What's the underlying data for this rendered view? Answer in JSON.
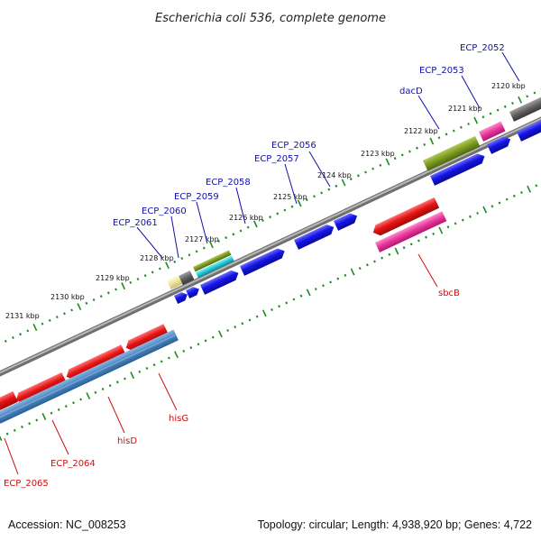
{
  "title": "Escherichia coli 536, complete genome",
  "footer": {
    "accession": "Accession: NC_008253",
    "summary": "Topology: circular; Length: 4,938,920 bp; Genes: 4,722"
  },
  "ruler_labels": [
    "2120 kbp",
    "2121 kbp",
    "2122 kbp",
    "2123 kbp",
    "2124 kbp",
    "2125 kbp",
    "2126 kbp",
    "2127 kbp",
    "2128 kbp",
    "2129 kbp",
    "2130 kbp",
    "2131 kbp"
  ],
  "forward_gene_labels": [
    "ECP_2052",
    "ECP_2053",
    "dacD",
    "ECP_2056",
    "ECP_2057",
    "ECP_2058",
    "ECP_2059",
    "ECP_2060",
    "ECP_2061"
  ],
  "reverse_gene_labels": [
    "sbcB",
    "hisG",
    "hisD",
    "ECP_2064",
    "ECP_2065"
  ],
  "colors": {
    "backbone": "#8c8c8c",
    "cds_forward": "#1414e6",
    "cds_reverse": "#e61414",
    "ruler_ticks": "#1e8c1e",
    "label_forward": "#1010a8",
    "label_reverse": "#c81010",
    "feature_olive": "#7a9a22",
    "feature_gray": "#606060",
    "feature_pink": "#e8349a",
    "feature_steelblue": "#4a86c0",
    "feature_cyan": "#22c8d8",
    "feature_cream": "#ece49c"
  }
}
